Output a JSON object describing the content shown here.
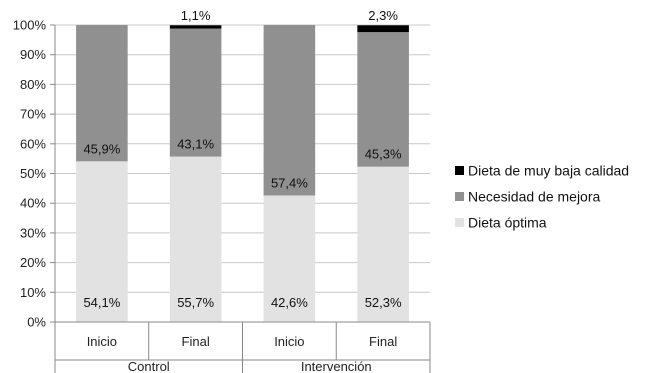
{
  "chart_data": {
    "type": "bar",
    "stacked": true,
    "categories": [
      "Inicio",
      "Final",
      "Inicio",
      "Final"
    ],
    "groups": [
      {
        "label": "Control",
        "categories": [
          "Inicio",
          "Final"
        ]
      },
      {
        "label": "Intervención",
        "categories": [
          "Inicio",
          "Final"
        ]
      }
    ],
    "series": [
      {
        "name": "Dieta óptima",
        "color": "#e2e2e2",
        "values": [
          54.1,
          55.7,
          42.6,
          52.3
        ],
        "labels": [
          "54,1%",
          "55,7%",
          "42,6%",
          "52,3%"
        ]
      },
      {
        "name": "Necesidad de mejora",
        "color": "#909090",
        "values": [
          45.9,
          43.1,
          57.4,
          45.3
        ],
        "labels": [
          "45,9%",
          "43,1%",
          "57,4%",
          "45,3%"
        ]
      },
      {
        "name": "Dieta de muy baja calidad",
        "color": "#000000",
        "values": [
          0,
          1.1,
          0,
          2.3
        ],
        "labels": [
          "",
          "1,1%",
          "",
          "2,3%"
        ]
      }
    ],
    "legend_order": [
      "Dieta de muy baja calidad",
      "Necesidad de mejora",
      "Dieta óptima"
    ],
    "yticks": [
      "0%",
      "10%",
      "20%",
      "30%",
      "40%",
      "50%",
      "60%",
      "70%",
      "80%",
      "90%",
      "100%"
    ],
    "ylim": [
      0,
      100
    ],
    "grid": true,
    "legend_position": "right"
  }
}
